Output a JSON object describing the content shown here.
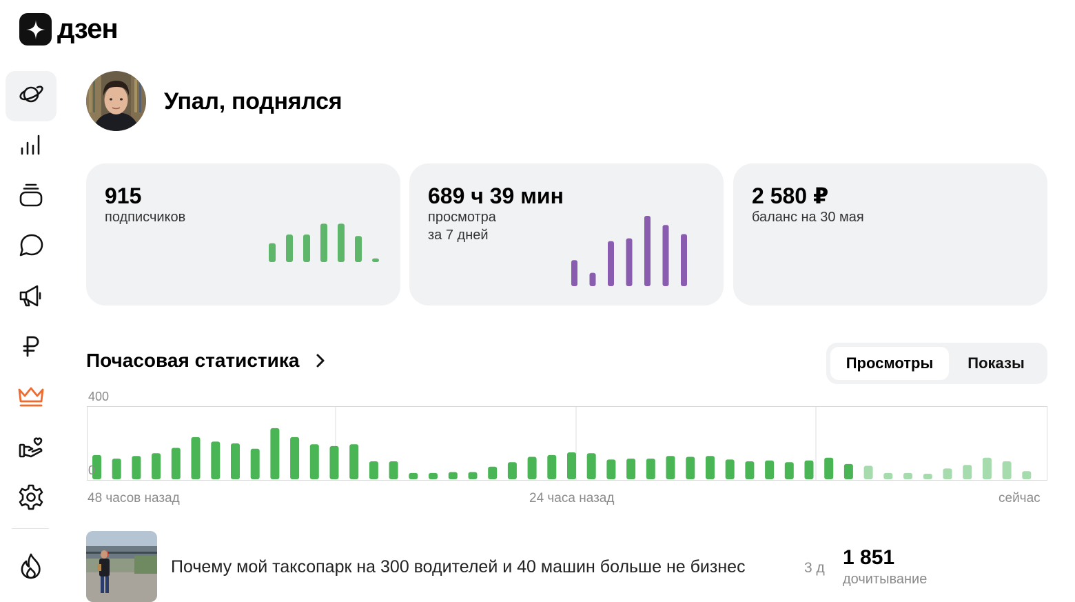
{
  "brand": {
    "name": "дзен"
  },
  "sidebar": {
    "items": [
      {
        "icon": "planet-icon",
        "active": true
      },
      {
        "icon": "bar-chart-icon",
        "active": false
      },
      {
        "icon": "layers-icon",
        "active": false
      },
      {
        "icon": "chat-bubble-icon",
        "active": false
      },
      {
        "icon": "megaphone-icon",
        "active": false
      },
      {
        "icon": "ruble-icon",
        "active": false
      },
      {
        "icon": "crown-icon",
        "active": false,
        "color": "#ef6a2c"
      },
      {
        "icon": "hand-heart-icon",
        "active": false
      },
      {
        "icon": "gear-icon",
        "active": false
      },
      {
        "icon": "fire-icon",
        "active": false
      }
    ]
  },
  "channel": {
    "name": "Упал, поднялся"
  },
  "cards": {
    "subscribers": {
      "value": "915",
      "label": "подписчиков",
      "color": "#5db66a",
      "trend": [
        2.6,
        3.8,
        3.8,
        5.3,
        5.3,
        3.6,
        0.5
      ]
    },
    "watch_time": {
      "value": "689 ч 39 мин",
      "label_line1": "просмотра",
      "label_line2": "за 7 дней",
      "color": "#8a5cb0",
      "trend": [
        3.7,
        1.9,
        6.4,
        6.8,
        10.0,
        8.7,
        7.4
      ]
    },
    "balance": {
      "value": "2 580 ₽",
      "label": "баланс на 30 мая"
    }
  },
  "hourly": {
    "title": "Почасовая статистика",
    "tabs": {
      "views": "Просмотры",
      "impressions": "Показы",
      "active": "views"
    },
    "y_max": "400",
    "y_min": "0",
    "x_labels": {
      "start": "48 часов назад",
      "middle": "24 часа назад",
      "end": "сейчас"
    }
  },
  "chart_data": {
    "type": "bar",
    "title": "Почасовая статистика",
    "ylim": [
      0,
      400
    ],
    "x_tick_labels": [
      "48 часов назад",
      "24 часа назад",
      "сейчас"
    ],
    "series": [
      {
        "values": [
          135,
          115,
          130,
          145,
          175,
          235,
          210,
          200,
          170,
          285,
          235,
          195,
          185,
          195,
          100,
          100,
          35,
          35,
          40,
          40,
          70,
          95,
          125,
          135,
          150,
          145,
          110,
          115,
          115,
          130,
          125,
          130,
          110,
          100,
          105,
          95,
          105,
          120,
          85,
          75,
          35,
          35,
          30,
          60,
          80,
          120,
          100,
          45
        ]
      }
    ],
    "color_recent": "#a6dbad",
    "color_main": "#4ab555"
  },
  "article": {
    "title": "Почему мой таксопарк на 300 водителей и 40 машин больше не бизнес",
    "age": "3 д",
    "metric_value": "1 851",
    "metric_label": "дочитывание"
  }
}
